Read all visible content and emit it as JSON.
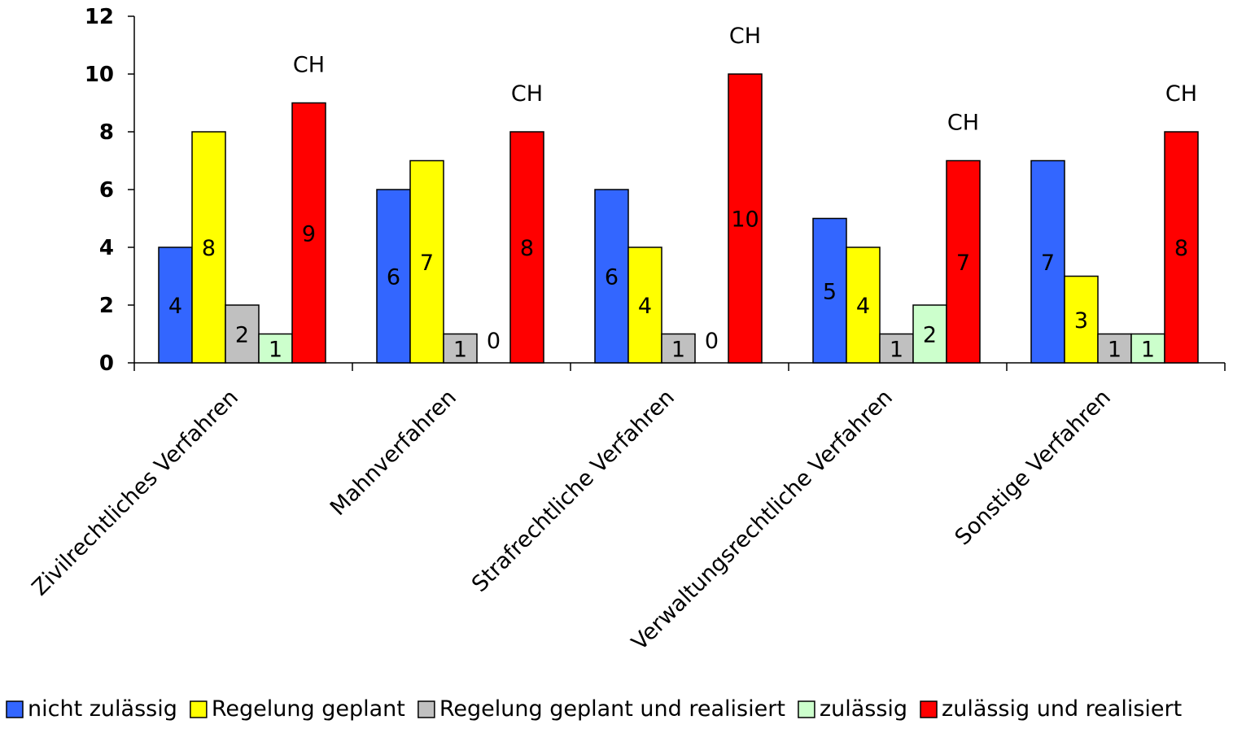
{
  "chart_data": {
    "type": "bar",
    "title": "",
    "xlabel": "",
    "ylabel": "",
    "ylim": [
      0,
      12
    ],
    "yticks": [
      0,
      2,
      4,
      6,
      8,
      10,
      12
    ],
    "grid": false,
    "legend_position": "bottom",
    "categories": [
      "Zivilrechtliches Verfahren",
      "Mahnverfahren",
      "Strafrechtliche Verfahren",
      "Verwaltungsrechtliche Verfahren",
      "Sonstige Verfahren"
    ],
    "series": [
      {
        "name": "nicht zulässig",
        "color": "#3366ff",
        "values": [
          4,
          6,
          6,
          5,
          7
        ]
      },
      {
        "name": "Regelung geplant",
        "color": "#ffff00",
        "values": [
          8,
          7,
          4,
          4,
          3
        ]
      },
      {
        "name": "Regelung geplant und realisiert",
        "color": "#c0c0c0",
        "values": [
          2,
          1,
          1,
          1,
          1
        ]
      },
      {
        "name": "zulässig",
        "color": "#ccffcc",
        "values": [
          1,
          0,
          0,
          2,
          1
        ]
      },
      {
        "name": "zulässig und realisiert",
        "color": "#ff0000",
        "values": [
          9,
          8,
          10,
          7,
          8
        ]
      }
    ],
    "annotations": [
      {
        "category": "Zivilrechtliches Verfahren",
        "text": "CH"
      },
      {
        "category": "Mahnverfahren",
        "text": "CH"
      },
      {
        "category": "Strafrechtliche Verfahren",
        "text": "CH"
      },
      {
        "category": "Verwaltungsrechtliche Verfahren",
        "text": "CH"
      },
      {
        "category": "Sonstige Verfahren",
        "text": "CH"
      }
    ]
  }
}
